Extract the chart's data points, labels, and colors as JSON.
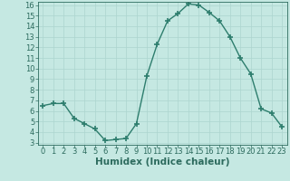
{
  "x": [
    0,
    1,
    2,
    3,
    4,
    5,
    6,
    7,
    8,
    9,
    10,
    11,
    12,
    13,
    14,
    15,
    16,
    17,
    18,
    19,
    20,
    21,
    22,
    23
  ],
  "y": [
    6.5,
    6.7,
    6.7,
    5.3,
    4.8,
    4.3,
    3.2,
    3.3,
    3.4,
    4.8,
    9.3,
    12.3,
    14.5,
    15.2,
    16.1,
    16.0,
    15.3,
    14.5,
    13.0,
    11.0,
    9.5,
    6.2,
    5.8,
    4.5
  ],
  "line_color": "#2d7d6d",
  "marker": "+",
  "markersize": 4,
  "markeredgewidth": 1.2,
  "bg_color": "#c5e8e2",
  "grid_color": "#acd5cf",
  "tick_label_color": "#2d6b5e",
  "xlabel": "Humidex (Indice chaleur)",
  "xlim": [
    -0.5,
    23.5
  ],
  "ylim": [
    3,
    16
  ],
  "yticks": [
    3,
    4,
    5,
    6,
    7,
    8,
    9,
    10,
    11,
    12,
    13,
    14,
    15,
    16
  ],
  "xticks": [
    0,
    1,
    2,
    3,
    4,
    5,
    6,
    7,
    8,
    9,
    10,
    11,
    12,
    13,
    14,
    15,
    16,
    17,
    18,
    19,
    20,
    21,
    22,
    23
  ],
  "xlabel_color": "#2d6b5e",
  "xlabel_fontsize": 7.5,
  "tick_fontsize": 6,
  "linewidth": 1.0
}
